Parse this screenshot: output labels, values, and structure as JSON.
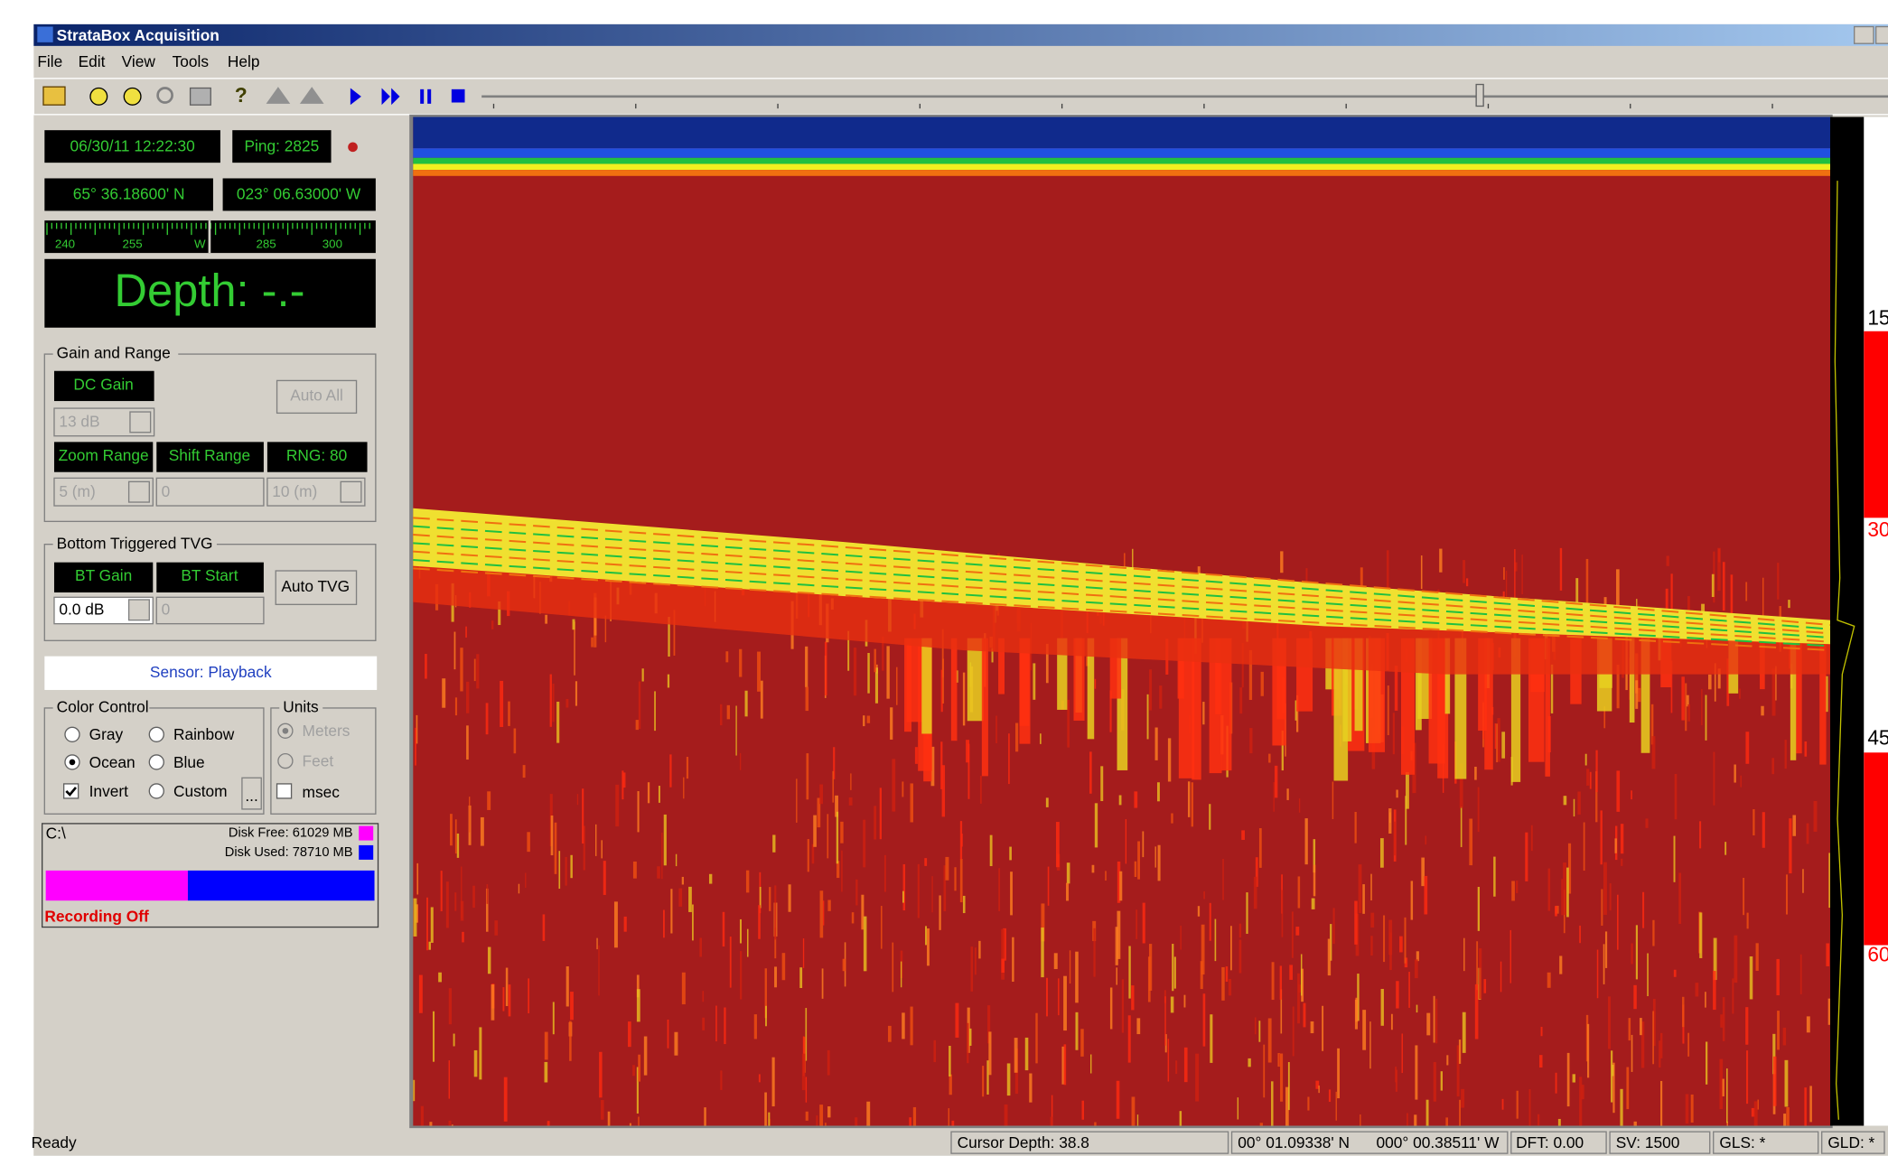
{
  "window": {
    "title": "StrataBox Acquisition"
  },
  "menu": [
    "File",
    "Edit",
    "View",
    "Tools",
    "Help"
  ],
  "readouts": {
    "datetime": "06/30/11 12:22:30",
    "ping": "Ping: 2825",
    "latitude": "65° 36.18600' N",
    "longitude": "023° 06.63000' W",
    "compass": [
      "240",
      "255",
      "W",
      "285",
      "300"
    ],
    "depth": "Depth: -.-"
  },
  "gain_and_range": {
    "title": "Gain and Range",
    "dc_gain": "DC Gain",
    "auto_all": "Auto All",
    "gain_value": "13 dB",
    "zoom_range": "Zoom Range",
    "shift_range": "Shift Range",
    "rng": "RNG: 80",
    "zoom_value": "5 (m)",
    "shift_value": "0",
    "range_value": "10 (m)"
  },
  "bottom_tvg": {
    "title": "Bottom Triggered TVG",
    "bt_gain": "BT Gain",
    "bt_start": "BT Start",
    "auto_tvg": "Auto TVG",
    "gain_value": "0.0 dB",
    "start_value": "0"
  },
  "sensor": "Sensor: Playback",
  "color_control": {
    "title": "Color Control",
    "options": [
      "Gray",
      "Rainbow",
      "Ocean",
      "Blue",
      "Invert",
      "Custom"
    ],
    "more": "..."
  },
  "units": {
    "title": "Units",
    "options": [
      "Meters",
      "Feet",
      "msec"
    ]
  },
  "disk": {
    "drive": "C:\\",
    "free": "Disk Free: 61029 MB",
    "used": "Disk Used: 78710 MB",
    "recording": "Recording Off"
  },
  "depth_scale": [
    "15",
    "30",
    "45",
    "60"
  ],
  "status_bar": [
    "Ready",
    "Cursor Depth: 38.8",
    "00° 01.09338' N",
    "000° 00.38511' W",
    "DFT: 0.00",
    "SV: 1500",
    "GLS: *",
    "GLD: *"
  ]
}
